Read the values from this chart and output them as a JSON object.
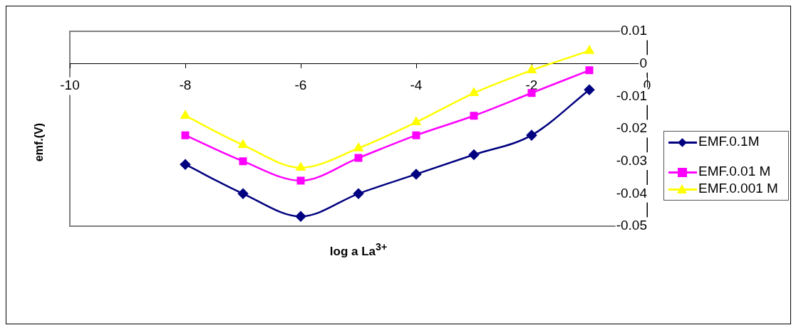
{
  "chart_data": {
    "type": "line",
    "xlabel": "log a La$^{3+}$",
    "ylabel": "emf.(V)",
    "x": [
      -8,
      -7,
      -6,
      -5,
      -4,
      -3,
      -2,
      -1
    ],
    "xlim": [
      -10,
      0
    ],
    "xticks": [
      -10,
      -8,
      -6,
      -4,
      -2,
      0
    ],
    "ylim": [
      -0.05,
      0.01
    ],
    "yticks": [
      -0.05,
      -0.04,
      -0.03,
      -0.02,
      -0.01,
      0,
      0.01
    ],
    "grid": false,
    "legend": "right",
    "series": [
      {
        "name": "EMF.0.1M",
        "color": "#000080",
        "marker": "diamond",
        "values": [
          -0.031,
          -0.04,
          -0.047,
          -0.04,
          -0.034,
          -0.028,
          -0.022,
          -0.008
        ]
      },
      {
        "name": "EMF.0.01 M",
        "color": "#ff00ff",
        "marker": "square",
        "values": [
          -0.022,
          -0.03,
          -0.036,
          -0.029,
          -0.022,
          -0.016,
          -0.009,
          -0.002
        ]
      },
      {
        "name": "EMF.0.001 M",
        "color": "#ffff00",
        "marker": "triangle",
        "values": [
          -0.016,
          -0.025,
          -0.032,
          -0.026,
          -0.018,
          -0.009,
          -0.002,
          0.004
        ]
      }
    ]
  }
}
